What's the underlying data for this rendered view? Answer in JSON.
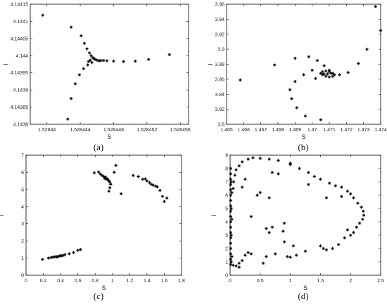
{
  "chart_data": [
    {
      "type": "scatter",
      "caption": "(a)",
      "xlabel": "S",
      "ylabel": "I",
      "xlim": [
        1.528438,
        1.528457
      ],
      "ylim": [
        4.1438,
        4.14415
      ],
      "xticks": [
        "1.52844",
        "1.528444",
        "1.528448",
        "1.528452",
        "1.528456"
      ],
      "xtick_values": [
        1.52844,
        1.528444,
        1.528448,
        1.528452,
        1.528456
      ],
      "yticks": [
        "4.1438",
        "4.14385",
        "4.1439",
        "4.14395",
        "4.144",
        "4.14405",
        "4.1441",
        "4.14415"
      ],
      "ytick_values": [
        4.1438,
        4.14385,
        4.1439,
        4.14395,
        4.144,
        4.14405,
        4.1441,
        4.14415
      ],
      "points": [
        [
          1.5284395,
          4.144118
        ],
        [
          1.5284429,
          4.144083
        ],
        [
          1.5284441,
          4.144058
        ],
        [
          1.5284445,
          4.144036
        ],
        [
          1.5284448,
          4.14402
        ],
        [
          1.5284451,
          4.144008
        ],
        [
          1.5284453,
          4.144
        ],
        [
          1.5284455,
          4.143994
        ],
        [
          1.5284457,
          4.14399
        ],
        [
          1.5284459,
          4.143988
        ],
        [
          1.5284461,
          4.143986
        ],
        [
          1.5284463,
          4.143985
        ],
        [
          1.5284465,
          4.143986
        ],
        [
          1.5284468,
          4.143986
        ],
        [
          1.5284472,
          4.143985
        ],
        [
          1.528448,
          4.143984
        ],
        [
          1.5284492,
          4.143983
        ],
        [
          1.5284506,
          4.143984
        ],
        [
          1.5284522,
          4.143989
        ],
        [
          1.5284547,
          4.144003
        ],
        [
          1.5284454,
          4.14398
        ],
        [
          1.5284449,
          4.143973
        ],
        [
          1.5284444,
          4.143962
        ],
        [
          1.5284439,
          4.143944
        ],
        [
          1.5284434,
          4.143918
        ],
        [
          1.5284429,
          4.143875
        ],
        [
          1.5284425,
          4.143815
        ],
        [
          1.5284456,
          4.143993
        ],
        [
          1.5284452,
          4.143987
        ],
        [
          1.528445,
          4.143983
        ]
      ]
    },
    {
      "type": "scatter",
      "caption": "(b)",
      "xlabel": "S",
      "ylabel": "I",
      "xlim": [
        1.465,
        1.474
      ],
      "ylim": [
        3.8,
        3.96
      ],
      "xticks": [
        "1.465",
        "1.466",
        "1.467",
        "1.468",
        "1.469",
        "1.47",
        "1.471",
        "1.472",
        "1.473",
        "1.474"
      ],
      "xtick_values": [
        1.465,
        1.466,
        1.467,
        1.468,
        1.469,
        1.47,
        1.471,
        1.472,
        1.473,
        1.474
      ],
      "yticks": [
        "3.8",
        "3.82",
        "3.84",
        "3.86",
        "3.88",
        "3.9",
        "3.92",
        "3.94",
        "3.96"
      ],
      "ytick_values": [
        3.8,
        3.82,
        3.84,
        3.86,
        3.88,
        3.9,
        3.92,
        3.94,
        3.96
      ],
      "points": [
        [
          1.4658,
          3.859
        ],
        [
          1.4678,
          3.879
        ],
        [
          1.469,
          3.888
        ],
        [
          1.4698,
          3.89
        ],
        [
          1.4703,
          3.885
        ],
        [
          1.4707,
          3.878
        ],
        [
          1.471,
          3.872
        ],
        [
          1.4712,
          3.868
        ],
        [
          1.4713,
          3.866
        ],
        [
          1.4712,
          3.864
        ],
        [
          1.471,
          3.863
        ],
        [
          1.4708,
          3.864
        ],
        [
          1.4706,
          3.866
        ],
        [
          1.4705,
          3.868
        ],
        [
          1.4706,
          3.87
        ],
        [
          1.4708,
          3.871
        ],
        [
          1.471,
          3.87
        ],
        [
          1.4711,
          3.868
        ],
        [
          1.4709,
          3.867
        ],
        [
          1.4707,
          3.867
        ],
        [
          1.47,
          3.872
        ],
        [
          1.4695,
          3.866
        ],
        [
          1.469,
          3.857
        ],
        [
          1.4687,
          3.846
        ],
        [
          1.4688,
          3.834
        ],
        [
          1.4691,
          3.822
        ],
        [
          1.4696,
          3.811
        ],
        [
          1.4705,
          3.806
        ],
        [
          1.4716,
          3.866
        ],
        [
          1.4721,
          3.869
        ],
        [
          1.4727,
          3.881
        ],
        [
          1.4732,
          3.9
        ],
        [
          1.4737,
          3.957
        ],
        [
          1.474,
          3.925
        ],
        [
          1.4702,
          3.861
        ]
      ]
    },
    {
      "type": "scatter",
      "caption": "(c)",
      "xlabel": "S",
      "ylabel": "I",
      "xlim": [
        0,
        1.8
      ],
      "ylim": [
        0,
        7
      ],
      "xticks": [
        "0",
        "0.2",
        "0.4",
        "0.6",
        "0.8",
        "1",
        "1.2",
        "1.4",
        "1.6",
        "1.8"
      ],
      "xtick_values": [
        0,
        0.2,
        0.4,
        0.6,
        0.8,
        1,
        1.2,
        1.4,
        1.6,
        1.8
      ],
      "yticks": [
        "0",
        "1",
        "2",
        "3",
        "4",
        "5",
        "6",
        "7"
      ],
      "ytick_values": [
        0,
        1,
        2,
        3,
        4,
        5,
        6,
        7
      ],
      "points": [
        [
          0.19,
          0.92
        ],
        [
          0.26,
          1.0
        ],
        [
          0.29,
          1.03
        ],
        [
          0.31,
          1.05
        ],
        [
          0.33,
          1.07
        ],
        [
          0.35,
          1.08
        ],
        [
          0.37,
          1.1
        ],
        [
          0.39,
          1.12
        ],
        [
          0.41,
          1.13
        ],
        [
          0.43,
          1.15
        ],
        [
          0.45,
          1.2
        ],
        [
          0.5,
          1.25
        ],
        [
          0.55,
          1.32
        ],
        [
          0.6,
          1.45
        ],
        [
          0.63,
          1.5
        ],
        [
          0.36,
          1.06
        ],
        [
          0.4,
          1.15
        ],
        [
          0.79,
          5.97
        ],
        [
          0.84,
          6.02
        ],
        [
          0.86,
          5.9
        ],
        [
          0.88,
          5.82
        ],
        [
          0.9,
          5.75
        ],
        [
          0.91,
          5.65
        ],
        [
          0.93,
          5.6
        ],
        [
          0.95,
          5.55
        ],
        [
          0.96,
          5.5
        ],
        [
          0.97,
          5.42
        ],
        [
          0.98,
          5.3
        ],
        [
          0.97,
          5.1
        ],
        [
          0.96,
          4.9
        ],
        [
          1.02,
          6.0
        ],
        [
          1.04,
          6.4
        ],
        [
          1.1,
          4.75
        ],
        [
          1.24,
          5.82
        ],
        [
          1.3,
          5.75
        ],
        [
          1.35,
          5.6
        ],
        [
          1.4,
          5.5
        ],
        [
          1.43,
          5.4
        ],
        [
          1.45,
          5.3
        ],
        [
          1.47,
          5.25
        ],
        [
          1.5,
          5.2
        ],
        [
          1.52,
          5.15
        ],
        [
          1.55,
          4.95
        ],
        [
          1.58,
          4.6
        ],
        [
          1.6,
          4.3
        ],
        [
          1.63,
          4.5
        ],
        [
          1.38,
          5.62
        ],
        [
          0.92,
          5.72
        ],
        [
          0.94,
          5.62
        ]
      ]
    },
    {
      "type": "scatter",
      "caption": "(d)",
      "xlabel": "S",
      "ylabel": "I",
      "xlim": [
        0,
        2.5
      ],
      "ylim": [
        0,
        9
      ],
      "xticks": [
        "0",
        "0.5",
        "1",
        "1.5",
        "2",
        "2.5"
      ],
      "xtick_values": [
        0,
        0.5,
        1,
        1.5,
        2,
        2.5
      ],
      "yticks": [
        "0",
        "1",
        "2",
        "3",
        "4",
        "5",
        "6",
        "7",
        "8",
        "9"
      ],
      "ytick_values": [
        0,
        1,
        2,
        3,
        4,
        5,
        6,
        7,
        8,
        9
      ],
      "points": [
        [
          0.01,
          0.8
        ],
        [
          0.01,
          1.2
        ],
        [
          0.01,
          1.6
        ],
        [
          0.01,
          2.0
        ],
        [
          0.01,
          2.4
        ],
        [
          0.01,
          2.8
        ],
        [
          0.01,
          3.2
        ],
        [
          0.01,
          3.6
        ],
        [
          0.01,
          4.0
        ],
        [
          0.01,
          4.4
        ],
        [
          0.01,
          4.8
        ],
        [
          0.01,
          5.2
        ],
        [
          0.01,
          5.6
        ],
        [
          0.01,
          6.0
        ],
        [
          0.01,
          6.4
        ],
        [
          0.01,
          6.8
        ],
        [
          0.01,
          7.2
        ],
        [
          0.01,
          7.6
        ],
        [
          0.01,
          8.0
        ],
        [
          0.02,
          1.0
        ],
        [
          0.02,
          3.0
        ],
        [
          0.02,
          5.0
        ],
        [
          0.02,
          7.0
        ],
        [
          0.03,
          1.4
        ],
        [
          0.03,
          4.2
        ],
        [
          0.03,
          6.2
        ],
        [
          0.05,
          0.75
        ],
        [
          0.1,
          0.7
        ],
        [
          0.15,
          0.9
        ],
        [
          0.2,
          1.1
        ],
        [
          0.25,
          1.5
        ],
        [
          0.35,
          1.6
        ],
        [
          0.6,
          1.4
        ],
        [
          0.95,
          1.4
        ],
        [
          1.0,
          1.35
        ],
        [
          1.25,
          1.8
        ],
        [
          1.5,
          2.2
        ],
        [
          1.55,
          2.0
        ],
        [
          1.6,
          1.9
        ],
        [
          1.7,
          2.0
        ],
        [
          1.8,
          2.3
        ],
        [
          1.9,
          2.8
        ],
        [
          2.0,
          3.0
        ],
        [
          2.05,
          3.2
        ],
        [
          2.1,
          3.6
        ],
        [
          2.15,
          3.9
        ],
        [
          2.2,
          4.2
        ],
        [
          2.22,
          4.5
        ],
        [
          2.21,
          4.8
        ],
        [
          2.18,
          5.1
        ],
        [
          2.12,
          5.4
        ],
        [
          2.05,
          5.8
        ],
        [
          2.0,
          6.1
        ],
        [
          1.95,
          6.3
        ],
        [
          1.85,
          6.6
        ],
        [
          1.75,
          6.7
        ],
        [
          1.65,
          6.9
        ],
        [
          1.5,
          7.2
        ],
        [
          1.4,
          7.4
        ],
        [
          1.3,
          7.7
        ],
        [
          1.15,
          8.0
        ],
        [
          1.0,
          8.3
        ],
        [
          0.8,
          8.6
        ],
        [
          0.65,
          8.7
        ],
        [
          0.5,
          8.75
        ],
        [
          0.38,
          8.8
        ],
        [
          0.3,
          8.7
        ],
        [
          0.2,
          8.5
        ],
        [
          0.15,
          8.2
        ],
        [
          0.1,
          7.9
        ],
        [
          0.08,
          7.5
        ],
        [
          0.06,
          7.0
        ],
        [
          0.05,
          6.5
        ],
        [
          0.45,
          6.0
        ],
        [
          0.5,
          6.2
        ],
        [
          0.6,
          3.5
        ],
        [
          0.65,
          3.2
        ],
        [
          0.7,
          3.6
        ],
        [
          0.9,
          3.9
        ],
        [
          0.88,
          3.3
        ],
        [
          0.65,
          5.8
        ],
        [
          0.7,
          7.7
        ],
        [
          1.0,
          8.4
        ],
        [
          1.3,
          6.8
        ],
        [
          1.6,
          5.8
        ],
        [
          1.85,
          5.9
        ],
        [
          1.95,
          3.4
        ],
        [
          0.15,
          0.6
        ],
        [
          0.3,
          1.7
        ],
        [
          0.55,
          0.9
        ],
        [
          0.75,
          1.6
        ],
        [
          1.1,
          1.5
        ],
        [
          1.05,
          2.2
        ],
        [
          0.9,
          2.5
        ],
        [
          0.35,
          4.4
        ],
        [
          0.25,
          7.2
        ],
        [
          0.8,
          7.6
        ],
        [
          0.2,
          6.6
        ]
      ]
    }
  ]
}
